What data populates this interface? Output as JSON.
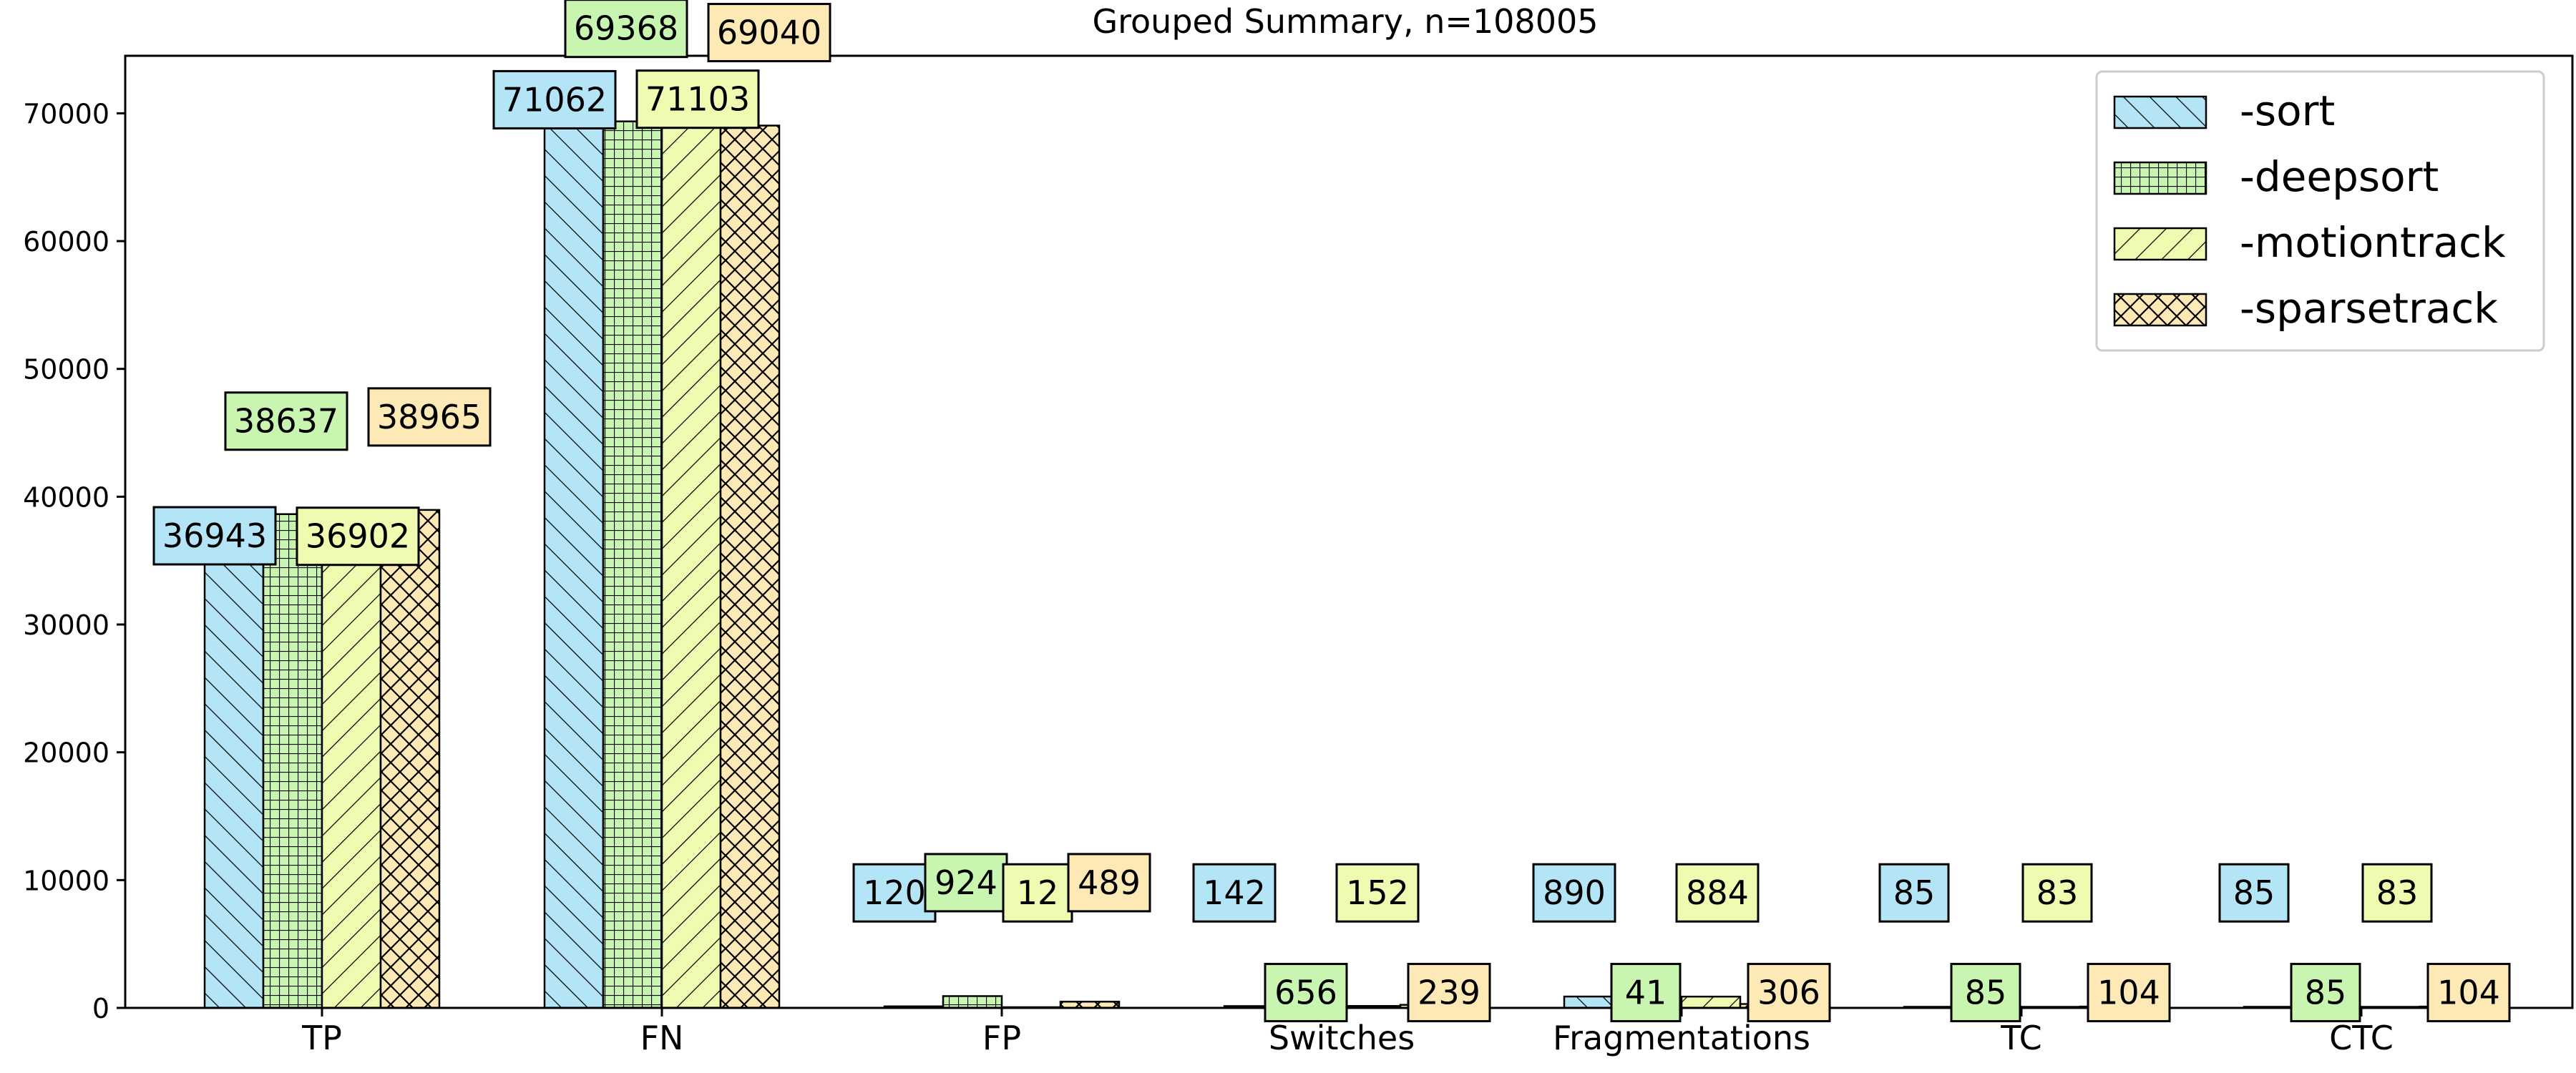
{
  "chart_data": {
    "type": "bar",
    "title": "Grouped Summary, n=108005",
    "xlabel": "",
    "ylabel": "",
    "ylim": [
      0,
      74500
    ],
    "yticks": [
      0,
      10000,
      20000,
      30000,
      40000,
      50000,
      60000,
      70000
    ],
    "categories": [
      "TP",
      "FN",
      "FP",
      "Switches",
      "Fragmentations",
      "TC",
      "CTC"
    ],
    "legend_position": "top-right",
    "grid": false,
    "series": [
      {
        "name": "-sort",
        "color": "#b3e5f7",
        "hatch": "diag-right",
        "values": [
          36943,
          71062,
          120,
          142,
          890,
          85,
          85
        ]
      },
      {
        "name": "-deepsort",
        "color": "#c8f5b0",
        "hatch": "grid",
        "values": [
          38637,
          69368,
          924,
          656,
          41,
          85,
          85
        ]
      },
      {
        "name": "-motiontrack",
        "color": "#eefbb0",
        "hatch": "diag-left",
        "values": [
          36902,
          71103,
          12,
          152,
          884,
          83,
          83
        ]
      },
      {
        "name": "-sparsetrack",
        "color": "#fde9b5",
        "hatch": "crosshatch",
        "values": [
          38965,
          69040,
          489,
          239,
          306,
          104,
          104
        ]
      }
    ],
    "data_labels": [
      [
        "36943",
        "71062",
        "120",
        "142",
        "890",
        "85",
        "85"
      ],
      [
        "38637",
        "69368",
        "924",
        "656",
        "41",
        "85",
        "85"
      ],
      [
        "36902",
        "71103",
        "12",
        "152",
        "884",
        "83",
        "83"
      ],
      [
        "38965",
        "69040",
        "489",
        "239",
        "306",
        "104",
        "104"
      ]
    ]
  }
}
